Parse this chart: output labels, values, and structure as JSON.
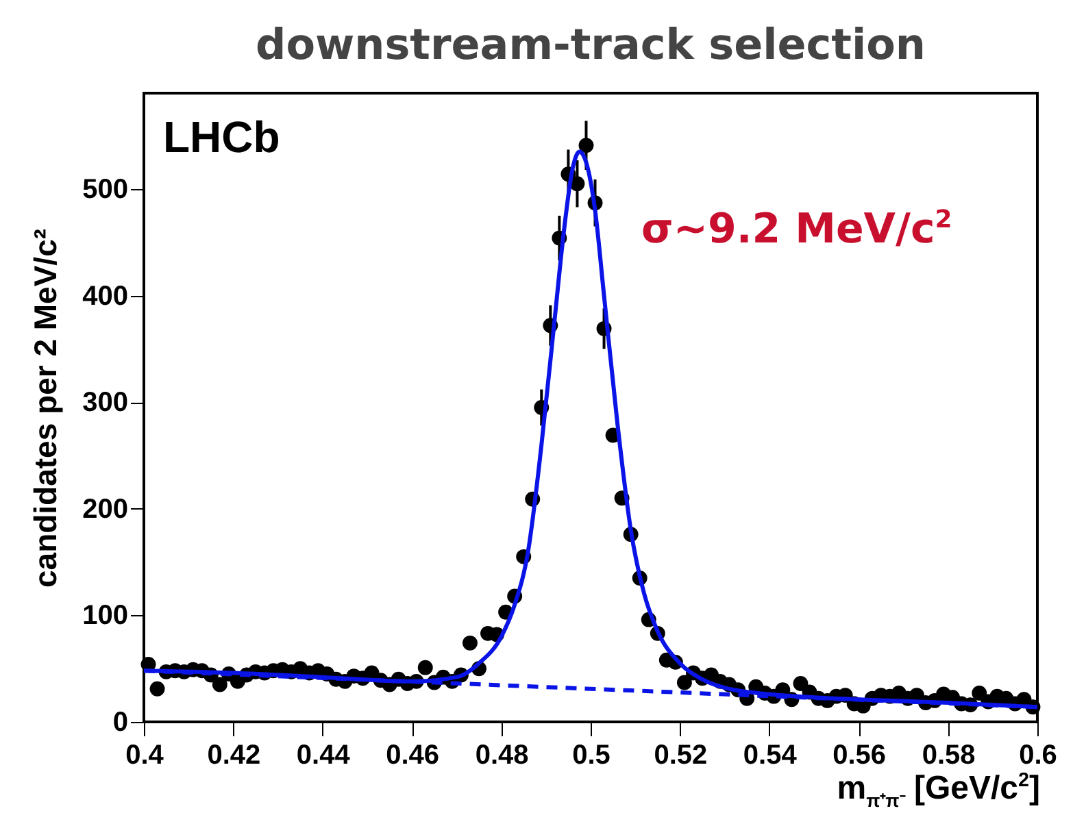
{
  "chart_data": {
    "type": "scatter",
    "title": "downstream-track selection",
    "xlabel": "m$_{π⁺π⁻}$ [GeV/c$^{2}$]",
    "ylabel": "candidates per 2 MeV/c²",
    "annotations": [
      "LHCb",
      "σ~9.2 MeV/c$^{2}$"
    ],
    "xlim": [
      0.4,
      0.6
    ],
    "xticks": [
      0.4,
      0.42,
      0.44,
      0.46,
      0.48,
      0.5,
      0.52,
      0.54,
      0.56,
      0.58,
      0.6
    ],
    "ylim": [
      0,
      590
    ],
    "yticks": [
      0,
      100,
      200,
      300,
      400,
      500
    ],
    "grid": false,
    "series": [
      {
        "color": "#000000",
        "marker": "circle",
        "x": [
          0.401,
          0.403,
          0.405,
          0.407,
          0.409,
          0.411,
          0.413,
          0.415,
          0.417,
          0.419,
          0.421,
          0.423,
          0.425,
          0.427,
          0.429,
          0.431,
          0.433,
          0.435,
          0.437,
          0.439,
          0.441,
          0.443,
          0.445,
          0.447,
          0.449,
          0.451,
          0.453,
          0.455,
          0.457,
          0.459,
          0.461,
          0.463,
          0.465,
          0.467,
          0.469,
          0.471,
          0.473,
          0.475,
          0.477,
          0.479,
          0.481,
          0.483,
          0.485,
          0.487,
          0.489,
          0.491,
          0.493,
          0.495,
          0.497,
          0.499,
          0.501,
          0.503,
          0.505,
          0.507,
          0.509,
          0.511,
          0.513,
          0.515,
          0.517,
          0.519,
          0.521,
          0.523,
          0.525,
          0.527,
          0.529,
          0.531,
          0.533,
          0.535,
          0.537,
          0.539,
          0.541,
          0.543,
          0.545,
          0.547,
          0.549,
          0.551,
          0.553,
          0.555,
          0.557,
          0.559,
          0.561,
          0.563,
          0.565,
          0.567,
          0.569,
          0.571,
          0.573,
          0.575,
          0.577,
          0.579,
          0.581,
          0.583,
          0.585,
          0.587,
          0.589,
          0.591,
          0.593,
          0.595,
          0.597,
          0.599
        ],
        "values": [
          54,
          31,
          47,
          48,
          47,
          49,
          48,
          44,
          35,
          45,
          38,
          44,
          47,
          46,
          48,
          49,
          47,
          50,
          46,
          48,
          45,
          40,
          38,
          43,
          41,
          46,
          39,
          35,
          40,
          36,
          38,
          51,
          37,
          42,
          38,
          44,
          74,
          50,
          83,
          82,
          103,
          118,
          155,
          209,
          295,
          372,
          454,
          514,
          505,
          541,
          487,
          369,
          269,
          210,
          176,
          135,
          96,
          83,
          58,
          56,
          37,
          46,
          41,
          44,
          38,
          35,
          30,
          22,
          33,
          27,
          24,
          30,
          21,
          36,
          28,
          22,
          20,
          24,
          25,
          17,
          15,
          22,
          25,
          24,
          27,
          22,
          25,
          18,
          20,
          26,
          23,
          17,
          16,
          27,
          19,
          24,
          22,
          17,
          21,
          14
        ],
        "errors": [
          null,
          null,
          null,
          null,
          null,
          null,
          null,
          null,
          null,
          null,
          null,
          null,
          null,
          null,
          null,
          null,
          null,
          null,
          null,
          null,
          null,
          null,
          null,
          null,
          null,
          null,
          null,
          null,
          null,
          null,
          null,
          null,
          null,
          null,
          null,
          null,
          null,
          null,
          null,
          null,
          null,
          null,
          null,
          null,
          17,
          19,
          21,
          23,
          22,
          23,
          22,
          19,
          null,
          null,
          null,
          null,
          null,
          null,
          null,
          null,
          null,
          null,
          null,
          null,
          null,
          null,
          null,
          null,
          null,
          null,
          null,
          null,
          null,
          null,
          null,
          null,
          null,
          null,
          null,
          null,
          null,
          null,
          null,
          null,
          null,
          null,
          null,
          null,
          null,
          null,
          null,
          null,
          null,
          null,
          null,
          null,
          null,
          null,
          null,
          null
        ]
      },
      {
        "type": "line",
        "color": "#0a14e6",
        "line_style": "solid",
        "x": [
          0.4,
          0.42,
          0.44,
          0.46,
          0.47,
          0.475,
          0.48,
          0.483,
          0.486,
          0.489,
          0.492,
          0.494,
          0.496,
          0.4975,
          0.499,
          0.501,
          0.503,
          0.506,
          0.509,
          0.512,
          0.515,
          0.52,
          0.525,
          0.53,
          0.54,
          0.55,
          0.56,
          0.58,
          0.6
        ],
        "values": [
          48,
          46,
          42,
          38,
          42,
          55,
          80,
          110,
          160,
          260,
          380,
          460,
          520,
          535,
          525,
          480,
          400,
          280,
          180,
          120,
          85,
          55,
          40,
          32,
          26,
          23,
          21,
          18,
          14
        ]
      },
      {
        "type": "line",
        "color": "#0a14e6",
        "line_style": "dashed",
        "x": [
          0.4,
          0.6
        ],
        "values": [
          48,
          14
        ]
      }
    ]
  }
}
